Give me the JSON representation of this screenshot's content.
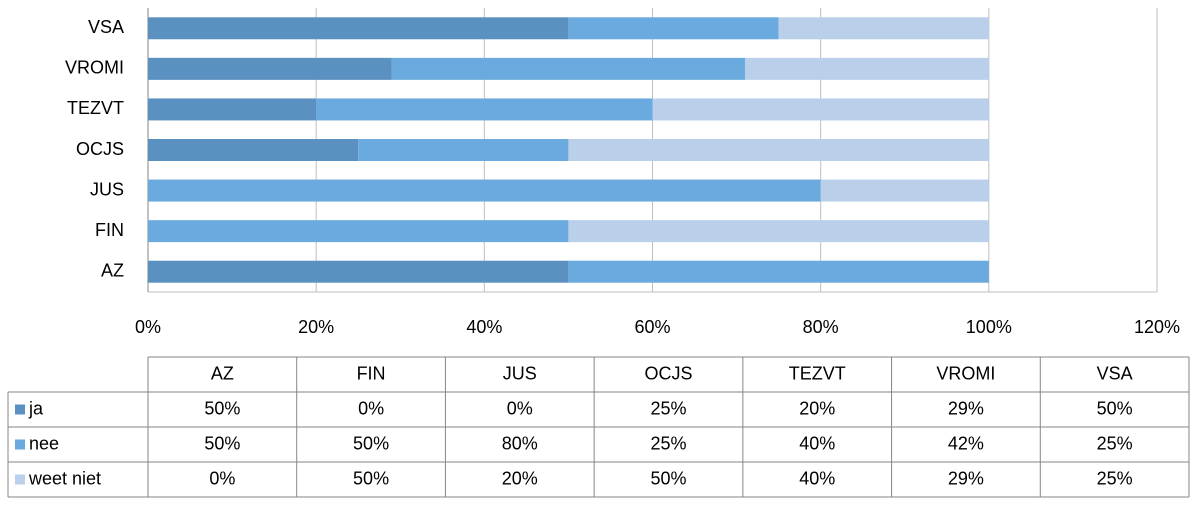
{
  "chart_data": {
    "type": "stacked-bar-horizontal",
    "categories": [
      "AZ",
      "FIN",
      "JUS",
      "OCJS",
      "TEZVT",
      "VROMI",
      "VSA"
    ],
    "series": [
      {
        "name": "ja",
        "color": "#5b91c0",
        "values": [
          50,
          0,
          0,
          25,
          20,
          29,
          50
        ],
        "value_labels": [
          "50%",
          "0%",
          "0%",
          "25%",
          "20%",
          "29%",
          "50%"
        ]
      },
      {
        "name": "nee",
        "color": "#6aaade",
        "values": [
          50,
          50,
          80,
          25,
          40,
          42,
          25
        ],
        "value_labels": [
          "50%",
          "50%",
          "80%",
          "25%",
          "40%",
          "42%",
          "25%"
        ]
      },
      {
        "name": "weet niet",
        "color": "#b9cfea",
        "values": [
          0,
          50,
          20,
          50,
          40,
          29,
          25
        ],
        "value_labels": [
          "0%",
          "50%",
          "20%",
          "50%",
          "40%",
          "29%",
          "25%"
        ]
      }
    ],
    "xlim": [
      0,
      120
    ],
    "xticks": [
      {
        "value": 0,
        "label": "0%"
      },
      {
        "value": 20,
        "label": "20%"
      },
      {
        "value": 40,
        "label": "40%"
      },
      {
        "value": 60,
        "label": "60%"
      },
      {
        "value": 80,
        "label": "80%"
      },
      {
        "value": 100,
        "label": "100%"
      },
      {
        "value": 120,
        "label": "120%"
      }
    ],
    "grid": true,
    "data_table": true
  }
}
